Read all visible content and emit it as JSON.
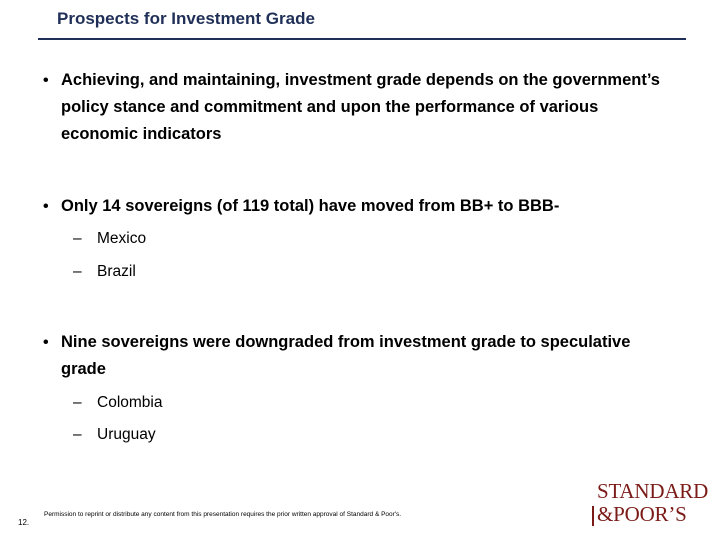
{
  "slide": {
    "title": "Prospects for Investment Grade"
  },
  "bullets": [
    {
      "marker": "•",
      "text": "Achieving, and maintaining, investment grade depends on the government’s policy stance and commitment and upon the performance of various economic indicators"
    },
    {
      "marker": "•",
      "text": "Only 14 sovereigns (of 119 total) have moved from BB+ to BBB-",
      "subitems": [
        {
          "marker": "–",
          "text": "Mexico"
        },
        {
          "marker": "–",
          "text": "Brazil"
        }
      ]
    },
    {
      "marker": "•",
      "text": "Nine sovereigns were downgraded from investment grade to speculative grade",
      "subitems": [
        {
          "marker": "–",
          "text": "Colombia"
        },
        {
          "marker": "–",
          "text": "Uruguay"
        }
      ]
    }
  ],
  "footer": {
    "page_number": "12.",
    "note": "Permission to reprint or distribute any content from this presentation requires the prior written approval of Standard & Poor's."
  },
  "logo": {
    "line1": "STANDARD",
    "line2": "&POOR’S",
    "color": "#7a1b17"
  },
  "colors": {
    "title": "#1f2f57",
    "rule": "#1f2f57"
  }
}
